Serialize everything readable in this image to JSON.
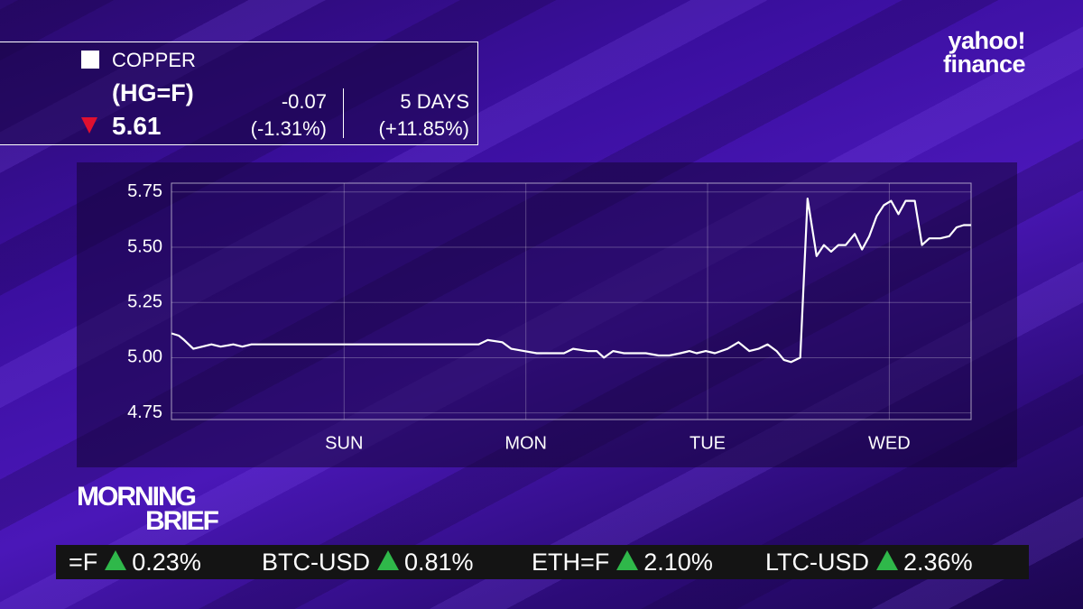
{
  "header": {
    "name": "COPPER",
    "symbol": "(HG=F)",
    "price": "5.61",
    "change": "-0.07",
    "change_pct": "(-1.31%)",
    "period": "5 DAYS",
    "period_change": "(+11.85%)"
  },
  "brand": {
    "line1": "yahoo!",
    "line2": "finance"
  },
  "show": {
    "line1": "MORNING",
    "line2": "BRIEF"
  },
  "ticker": [
    {
      "symbol": "=F",
      "change": "0.23%"
    },
    {
      "symbol": "BTC-USD",
      "change": "0.81%"
    },
    {
      "symbol": "ETH=F",
      "change": "2.10%"
    },
    {
      "symbol": "LTC-USD",
      "change": "2.36%"
    }
  ],
  "chart_data": {
    "type": "line",
    "color": "#ffffff",
    "grid": true,
    "x": [
      0.05,
      0.09,
      0.12,
      0.17,
      0.22,
      0.27,
      0.32,
      0.39,
      0.44,
      0.49,
      0.55,
      1.74,
      1.79,
      1.87,
      1.92,
      1.99,
      2.06,
      2.14,
      2.21,
      2.26,
      2.34,
      2.39,
      2.43,
      2.48,
      2.54,
      2.61,
      2.66,
      2.73,
      2.79,
      2.85,
      2.9,
      2.94,
      2.99,
      3.04,
      3.11,
      3.17,
      3.23,
      3.28,
      3.33,
      3.38,
      3.42,
      3.46,
      3.51,
      3.55,
      3.6,
      3.64,
      3.68,
      3.72,
      3.76,
      3.81,
      3.85,
      3.89,
      3.93,
      3.97,
      4.01,
      4.05,
      4.09,
      4.14,
      4.18,
      4.22,
      4.28,
      4.33,
      4.37,
      4.41,
      4.45
    ],
    "values": [
      5.11,
      5.1,
      5.08,
      5.04,
      5.05,
      5.06,
      5.05,
      5.06,
      5.05,
      5.06,
      5.06,
      5.06,
      5.08,
      5.07,
      5.04,
      5.03,
      5.02,
      5.02,
      5.02,
      5.04,
      5.03,
      5.03,
      5.0,
      5.03,
      5.02,
      5.02,
      5.02,
      5.01,
      5.01,
      5.02,
      5.03,
      5.02,
      5.03,
      5.02,
      5.04,
      5.07,
      5.03,
      5.04,
      5.06,
      5.03,
      4.99,
      4.98,
      5.0,
      5.72,
      5.46,
      5.51,
      5.48,
      5.51,
      5.51,
      5.56,
      5.49,
      5.55,
      5.64,
      5.69,
      5.71,
      5.65,
      5.71,
      5.71,
      5.51,
      5.54,
      5.54,
      5.55,
      5.59,
      5.6,
      5.6
    ],
    "xlim": [
      0.05,
      4.45
    ],
    "xticks": [
      {
        "value": 1,
        "label": "SUN"
      },
      {
        "value": 2,
        "label": "MON"
      },
      {
        "value": 3,
        "label": "TUE"
      },
      {
        "value": 4,
        "label": "WED"
      }
    ],
    "ylim": [
      4.72,
      5.79
    ],
    "yticks": [
      4.75,
      {
        "value": 5,
        "label": "5.00"
      },
      5.25,
      {
        "value": 5.5,
        "label": "5.50"
      },
      5.75
    ]
  }
}
